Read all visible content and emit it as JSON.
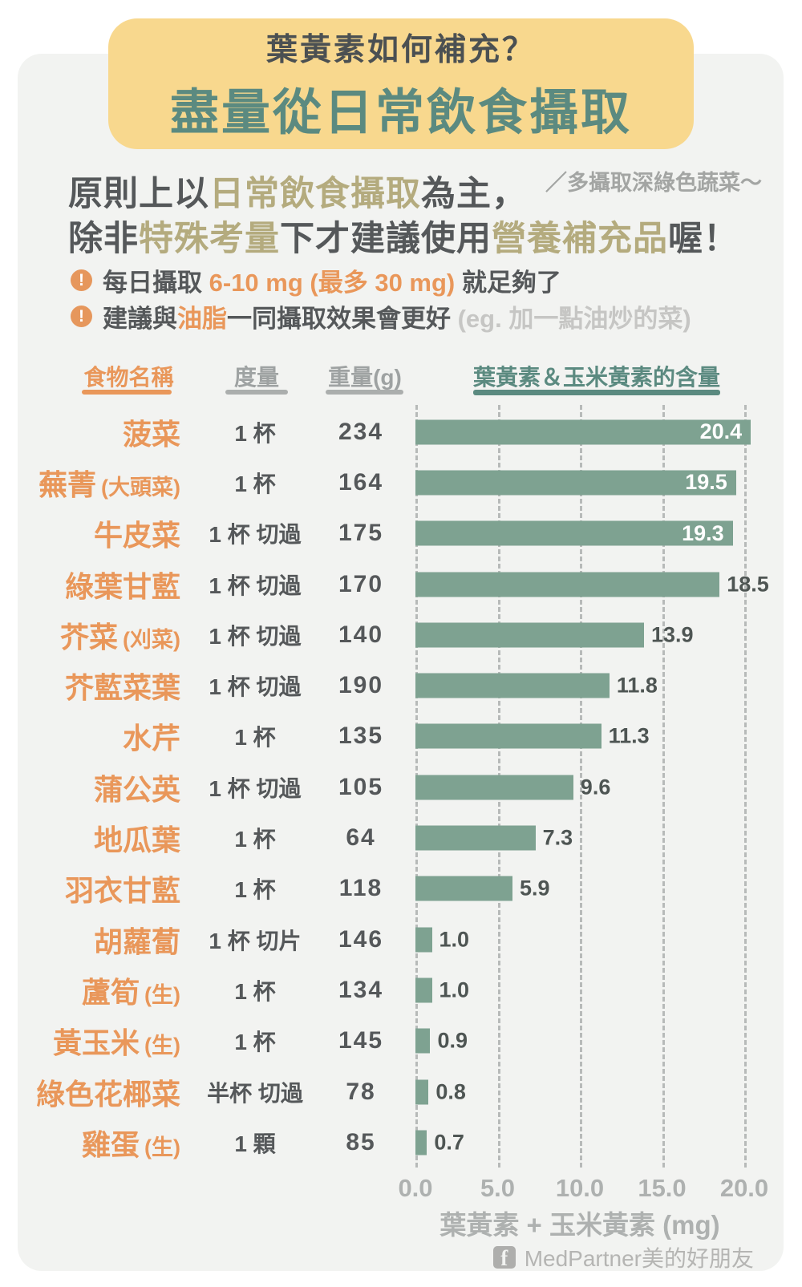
{
  "banner": {
    "subtitle": "葉黃素如何補充？",
    "title": "盡量從日常飲食攝取"
  },
  "intro": {
    "line1": [
      {
        "text": "原則上以",
        "color": "dark"
      },
      {
        "text": "日常飲食攝取",
        "color": "olive"
      },
      {
        "text": "為主，",
        "color": "dark"
      }
    ],
    "line2": [
      {
        "text": "除非",
        "color": "dark"
      },
      {
        "text": "特殊考量",
        "color": "olive"
      },
      {
        "text": "下才建議使用",
        "color": "dark"
      },
      {
        "text": "營養補充品",
        "color": "olive"
      },
      {
        "text": "喔！",
        "color": "dark"
      }
    ],
    "annotation": "／多攝取深綠色蔬菜～"
  },
  "notes": [
    {
      "icon": "exclamation-icon",
      "icon_glyph": "!",
      "segments": [
        {
          "text": "每日攝取 ",
          "color": "dark"
        },
        {
          "text": "6-10 mg (最多 30 mg)",
          "color": "orange"
        },
        {
          "text": " 就足夠了",
          "color": "dark"
        }
      ]
    },
    {
      "icon": "exclamation-icon",
      "icon_glyph": "!",
      "segments": [
        {
          "text": "建議與",
          "color": "dark"
        },
        {
          "text": "油脂",
          "color": "orange"
        },
        {
          "text": "一同攝取效果會更好",
          "color": "dark"
        },
        {
          "text": " (eg. 加一點油炒的菜)",
          "color": "light"
        }
      ]
    }
  ],
  "table": {
    "headers": {
      "food": "食物名稱",
      "measure": "度量",
      "weight": "重量(g)",
      "chart": "葉黃素＆玉米黃素的含量"
    },
    "rows": [
      {
        "food": "菠菜",
        "note": "",
        "measure": "1 杯",
        "weight": "234",
        "value": 20.4,
        "label_inside": true
      },
      {
        "food": "蕪菁",
        "note": "(大頭菜)",
        "measure": "1 杯",
        "weight": "164",
        "value": 19.5,
        "label_inside": true
      },
      {
        "food": "牛皮菜",
        "note": "",
        "measure": "1 杯 切過",
        "weight": "175",
        "value": 19.3,
        "label_inside": true
      },
      {
        "food": "綠葉甘藍",
        "note": "",
        "measure": "1 杯 切過",
        "weight": "170",
        "value": 18.5,
        "label_inside": false
      },
      {
        "food": "芥菜",
        "note": "(刈菜)",
        "measure": "1 杯 切過",
        "weight": "140",
        "value": 13.9,
        "label_inside": false
      },
      {
        "food": "芥藍菜葉",
        "note": "",
        "measure": "1 杯 切過",
        "weight": "190",
        "value": 11.8,
        "label_inside": false
      },
      {
        "food": "水芹",
        "note": "",
        "measure": "1 杯",
        "weight": "135",
        "value": 11.3,
        "label_inside": false
      },
      {
        "food": "蒲公英",
        "note": "",
        "measure": "1 杯 切過",
        "weight": "105",
        "value": 9.6,
        "label_inside": false
      },
      {
        "food": "地瓜葉",
        "note": "",
        "measure": "1 杯",
        "weight": "64",
        "value": 7.3,
        "label_inside": false
      },
      {
        "food": "羽衣甘藍",
        "note": "",
        "measure": "1 杯",
        "weight": "118",
        "value": 5.9,
        "label_inside": false
      },
      {
        "food": "胡蘿蔔",
        "note": "",
        "measure": "1 杯 切片",
        "weight": "146",
        "value": 1.0,
        "label_inside": false
      },
      {
        "food": "蘆筍",
        "note": "(生)",
        "measure": "1 杯",
        "weight": "134",
        "value": 1.0,
        "label_inside": false
      },
      {
        "food": "黃玉米",
        "note": "(生)",
        "measure": "1 杯",
        "weight": "145",
        "value": 0.9,
        "label_inside": false
      },
      {
        "food": "綠色花椰菜",
        "note": "",
        "measure": "半杯 切過",
        "weight": "78",
        "value": 0.8,
        "label_inside": false
      },
      {
        "food": "雞蛋",
        "note": "(生)",
        "measure": "1 顆",
        "weight": "85",
        "value": 0.7,
        "label_inside": false
      }
    ]
  },
  "chart_data": {
    "type": "bar",
    "orientation": "horizontal",
    "title": "葉黃素＆玉米黃素的含量",
    "xlabel": "葉黃素 + 玉米黃素 (mg)",
    "xlim": [
      0,
      20
    ],
    "xticks": [
      0,
      5,
      10,
      15,
      20
    ],
    "xtick_labels": [
      "0.0",
      "5.0",
      "10.0",
      "15.0",
      "20.0"
    ],
    "grid": "dashed-vertical",
    "categories": [
      "菠菜",
      "蕪菁 (大頭菜)",
      "牛皮菜",
      "綠葉甘藍",
      "芥菜 (刈菜)",
      "芥藍菜葉",
      "水芹",
      "蒲公英",
      "地瓜葉",
      "羽衣甘藍",
      "胡蘿蔔",
      "蘆筍 (生)",
      "黃玉米 (生)",
      "綠色花椰菜",
      "雞蛋 (生)"
    ],
    "values": [
      20.4,
      19.5,
      19.3,
      18.5,
      13.9,
      11.8,
      11.3,
      9.6,
      7.3,
      5.9,
      1.0,
      1.0,
      0.9,
      0.8,
      0.7
    ]
  },
  "axis": {
    "title": "葉黃素 + 玉米黃素 (mg)"
  },
  "footer": {
    "brand": "MedPartner美的好朋友",
    "fb_glyph": "f"
  },
  "colors": {
    "card_bg": "#F2F3F1",
    "banner_bg": "#F8D88E",
    "teal": "#5B8A80",
    "charcoal": "#4B5052",
    "dark_text": "#55585A",
    "olive": "#B4AB7E",
    "orange": "#E9975A",
    "bar_green": "#7EA291",
    "gridline": "#B7BAB9",
    "axis_gray": "#AEB1B0",
    "footer_gray": "#B5B5B3"
  }
}
